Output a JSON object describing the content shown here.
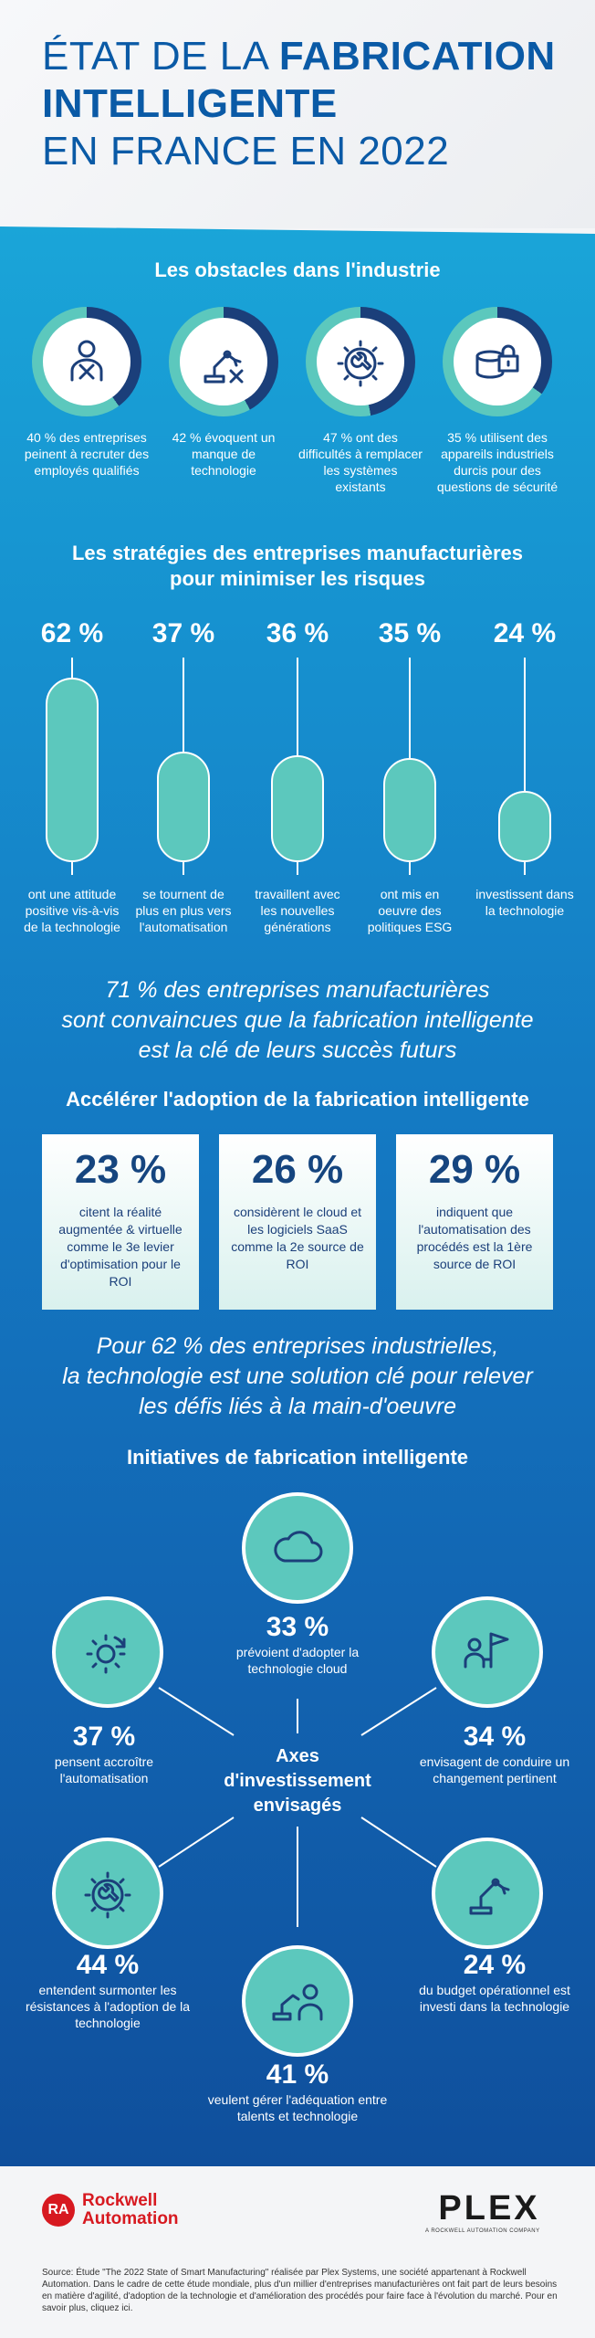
{
  "title": {
    "line1_regular": "ÉTAT DE LA ",
    "line1_bold": "FABRICATION",
    "line2_bold": "INTELLIGENTE",
    "line3_regular": "EN FRANCE EN 2022"
  },
  "obstacles": {
    "title": "Les obstacles dans l'industrie",
    "items": [
      {
        "text": "40 % des entreprises peinent à recruter des employés qualifiés",
        "icon": "person-x-icon",
        "fraction": 0.4
      },
      {
        "text": "42 % évoquent un manque de technologie",
        "icon": "robot-arm-x-icon",
        "fraction": 0.42
      },
      {
        "text": "47 % ont des difficultés à remplacer les systèmes existants",
        "icon": "gear-wrench-icon",
        "fraction": 0.47
      },
      {
        "text": "35 % utilisent des appareils industriels durcis pour des questions de sécurité",
        "icon": "lock-device-icon",
        "fraction": 0.35
      }
    ]
  },
  "strategies": {
    "title_line1": "Les stratégies des entreprises manufacturières",
    "title_line2": "pour minimiser les risques",
    "items": [
      {
        "pct": "62 %",
        "value": 62,
        "label": "ont une attitude positive vis-à-vis de la technologie"
      },
      {
        "pct": "37 %",
        "value": 37,
        "label": "se tournent de plus en plus vers l'automatisation"
      },
      {
        "pct": "36 %",
        "value": 36,
        "label": "travaillent avec les nouvelles générations"
      },
      {
        "pct": "35 %",
        "value": 35,
        "label": "ont mis en oeuvre des politiques ESG"
      },
      {
        "pct": "24 %",
        "value": 24,
        "label": "investissent dans la technologie"
      }
    ]
  },
  "quote1": {
    "line1": "71 % des entreprises manufacturières",
    "line2": "sont convaincues que la fabrication intelligente",
    "line3": "est la clé de leurs succès futurs"
  },
  "adoption": {
    "title": "Accélérer l'adoption de la fabrication intelligente",
    "boxes": [
      {
        "pct": "23 %",
        "text": "citent la réalité augmentée & virtuelle comme le 3e levier d'optimisation pour le ROI"
      },
      {
        "pct": "26 %",
        "text": "considèrent le cloud et les logiciels SaaS comme la 2e source de ROI"
      },
      {
        "pct": "29 %",
        "text": "indiquent que l'automatisation des procédés est la 1ère source de ROI"
      }
    ]
  },
  "quote2": {
    "line1": "Pour 62 % des entreprises industrielles,",
    "line2": "la technologie est une solution clé pour relever",
    "line3": "les défis liés à la main-d'oeuvre"
  },
  "initiatives": {
    "title": "Initiatives de fabrication intelligente",
    "center_label": "Axes d'investissement envisagés",
    "items": [
      {
        "pct": "33 %",
        "text": "prévoient d'adopter la technologie cloud",
        "icon": "cloud-icon"
      },
      {
        "pct": "34 %",
        "text": "envisagent de conduire un changement pertinent",
        "icon": "people-flag-icon"
      },
      {
        "pct": "24 %",
        "text": "du budget opérationnel est investi dans la technologie",
        "icon": "robot-arm-icon"
      },
      {
        "pct": "41 %",
        "text": "veulent gérer l'adéquation entre talents et technologie",
        "icon": "robot-person-icon"
      },
      {
        "pct": "44 %",
        "text": "entendent surmonter les résistances à l'adoption de la technologie",
        "icon": "gear-wrench-icon"
      },
      {
        "pct": "37 %",
        "text": "pensent accroître l'automatisation",
        "icon": "gear-refresh-icon"
      }
    ]
  },
  "footer": {
    "ra_badge": "RA",
    "ra_name_line1": "Rockwell",
    "ra_name_line2": "Automation",
    "plex_logo": "PLEX",
    "plex_sub": "A ROCKWELL AUTOMATION COMPANY",
    "source": "Source: Étude \"The 2022 State of Smart Manufacturing\" réalisée par Plex Systems, une société appartenant à Rockwell Automation. Dans le cadre de cette étude mondiale, plus d'un millier d'entreprises manufacturières ont fait part de leurs besoins en matière d'agilité, d'adoption de la technologie et d'amélioration des procédés pour faire face à l'évolution du marché. Pour en savoir plus, cliquez ici."
  },
  "colors": {
    "title_blue": "#0a5aa6",
    "teal": "#5cc8bd",
    "ring_track": "#1b3f7a",
    "rockwell_red": "#d71920"
  }
}
